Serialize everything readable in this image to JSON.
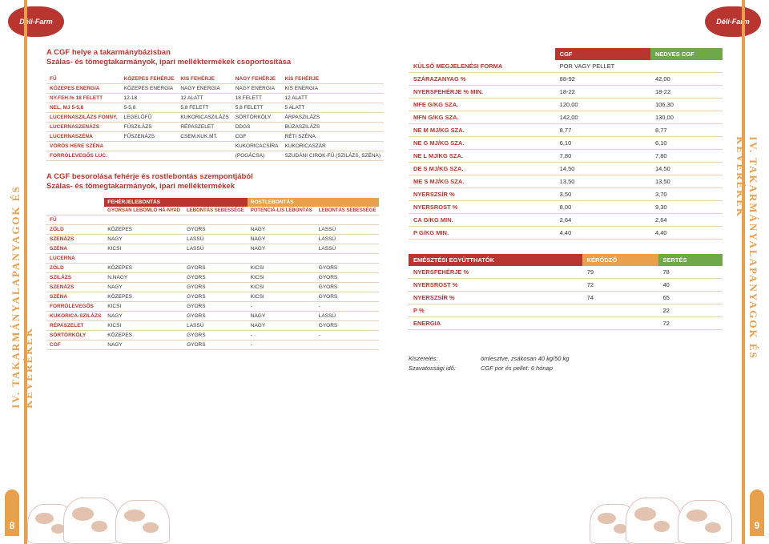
{
  "brand": "Déli-Farm",
  "side_label": "IV. TAKARMÁNYALAPANYAGOK ÉS KEVERÉKEK",
  "page_left": "8",
  "page_right": "9",
  "heading1_l1": "A CGF helye a takarmánybázisban",
  "heading1_l2": "Szálas- és tömegtakarmányok, ipari melléktermékek csoportosítása",
  "table1": {
    "cols": [
      "FŰ",
      "KÖZEPES FEHÉRJE",
      "KIS FEHÉRJE",
      "NAGY FEHÉRJE",
      "KIS FEHÉRJE"
    ],
    "rows": [
      [
        "KÖZEPES ENERGIA",
        "KÖZEPES ENERGIA",
        "NAGY ENERGIA",
        "NAGY ENERGIA",
        "KIS ENERGIA"
      ],
      [
        "NY.FEH.% 18 FELETT",
        "12-18",
        "12 ALATT",
        "18 FELETT",
        "12 ALATT"
      ],
      [
        "NEL, MJ 5-5,8",
        "5-5,8",
        "5,8 FELETT",
        "5,8 FELETT",
        "5 ALATT"
      ],
      [
        "LUCERNASZILÁZS FONNY.",
        "LEGELŐFŰ",
        "KUKORICASZILÁZS",
        "SÖRTÖRKÖLY",
        "ÁRPASZILÁZS"
      ],
      [
        "LUCERNASZENÁZS",
        "FŰSZILÁZS",
        "RÉPASZELET",
        "DDGS",
        "BÚZASZILÁZS"
      ],
      [
        "LUCERNASZÉNA",
        "FŰSZENÁZS",
        "CSEM.KUK.MT.",
        "CGF",
        "RÉTI SZÉNA"
      ],
      [
        "VÖRÖS HERE SZÉNA",
        "",
        "",
        "KUKORICACSÍRA",
        "KUKORICASZÁR"
      ],
      [
        "FORRÓLEVEGŐS LUC.",
        "",
        "",
        "(POGÁCSA)",
        "SZUDÁNI CIROK-FŰ (SZILÁZS, SZÉNA)"
      ]
    ]
  },
  "heading2_l1": "A CGF besorolása fehérje és rostlebontás szempontjából",
  "heading2_l2": "Szálas- és tömegtakarmányok, ipari melléktermékek",
  "table2": {
    "super": [
      "",
      "FEHÉRJELEBONTÁS",
      "ROSTLEBONTÁS"
    ],
    "sub": [
      "",
      "GYORSAN LEBOMLÓ HÁ-NYAD",
      "LEBONTÁS SEBESSÉGE",
      "POTENCIÁ-LIS LEBONTÁS",
      "LEBONTÁS SEBESSÉGE"
    ],
    "rows": [
      [
        "FŰ",
        "",
        "",
        "",
        ""
      ],
      [
        "ZÖLD",
        "KÖZEPES",
        "GYORS",
        "NAGY",
        "LASSÚ"
      ],
      [
        "SZENÁZS",
        "NAGY",
        "LASSÚ",
        "NAGY",
        "LASSÚ"
      ],
      [
        "SZÉNA",
        "KICSI",
        "LASSÚ",
        "NAGY",
        "LASSÚ"
      ],
      [
        "LUCERNA",
        "",
        "",
        "",
        ""
      ],
      [
        "ZÖLD",
        "KÖZEPES",
        "GYORS",
        "KICSI",
        "GYORS"
      ],
      [
        "SZILÁZS",
        "N.NAGY",
        "GYORS",
        "KICSI",
        "GYORS"
      ],
      [
        "SZENÁZS",
        "NAGY",
        "GYORS",
        "KICSI",
        "GYORS"
      ],
      [
        "SZÉNA",
        "KÖZEPES",
        "GYORS",
        "KICSI",
        "GYORS"
      ],
      [
        "FORRÓLEVEGŐS",
        "KICSI",
        "GYORS",
        "-",
        "-"
      ],
      [
        "KUKORICA-SZILÁZS",
        "NAGY",
        "GYORS",
        "NAGY",
        "LASSÚ"
      ],
      [
        "RÉPASZELET",
        "KICSI",
        "LASSÚ",
        "NAGY",
        "GYORS"
      ],
      [
        "SÖRTÖRKÖLY",
        "KÖZEPES",
        "GYORS",
        "-",
        "-"
      ],
      [
        "CGF",
        "NAGY",
        "GYORS",
        "-",
        ""
      ]
    ]
  },
  "table3": {
    "head": [
      "",
      "CGF",
      "NEDVES CGF"
    ],
    "rows": [
      [
        "KÜLSŐ MEGJELENÉSI FORMA",
        "POR VAGY PELLET",
        ""
      ],
      [
        "SZÁRAZANYAG %",
        "88-92",
        "42,00"
      ],
      [
        "NYERSFEHÉRJE % MIN.",
        "18-22",
        "18-22"
      ],
      [
        "MFE G/KG SZA.",
        "120,00",
        "106,30"
      ],
      [
        "MFN G/KG SZA.",
        "142,00",
        "130,00"
      ],
      [
        "NE M MJ/KG SZA.",
        "8,77",
        "8,77"
      ],
      [
        "NE G MJ/KG SZA.",
        "6,10",
        "6,10"
      ],
      [
        "NE L MJ/KG SZA.",
        "7,80",
        "7,80"
      ],
      [
        "DE S MJ/KG SZA.",
        "14,50",
        "14,50"
      ],
      [
        "ME S MJ/KG SZA.",
        "13,50",
        "13,50"
      ],
      [
        "NYERSZSÍR %",
        "3,50",
        "3,70"
      ],
      [
        "NYERSROST %",
        "8,00",
        "9,30"
      ],
      [
        "CA G/KG MIN.",
        "2,64",
        "2,64"
      ],
      [
        "P G/KG MIN.",
        "4,40",
        "4,40"
      ]
    ]
  },
  "table4": {
    "head": [
      "EMÉSZTÉSI EGYÜTTHATÓK",
      "KÉRŐDZŐ",
      "SERTÉS"
    ],
    "rows": [
      [
        "NYERSFEHÉRJE %",
        "79",
        "78"
      ],
      [
        "NYERSROST %",
        "72",
        "40"
      ],
      [
        "NYERSZSÍR %",
        "74",
        "65"
      ],
      [
        "P %",
        "",
        "22"
      ],
      [
        "ENERGIA",
        "",
        "72"
      ]
    ]
  },
  "footer": {
    "l1_label": "Kiszerelés:",
    "l1_val": "ömlesztve, zsákosan 40 kg/50 kg",
    "l2_label": "Szavatossági idő:",
    "l2_val": "CGF por és pellet: 6 hónap"
  }
}
